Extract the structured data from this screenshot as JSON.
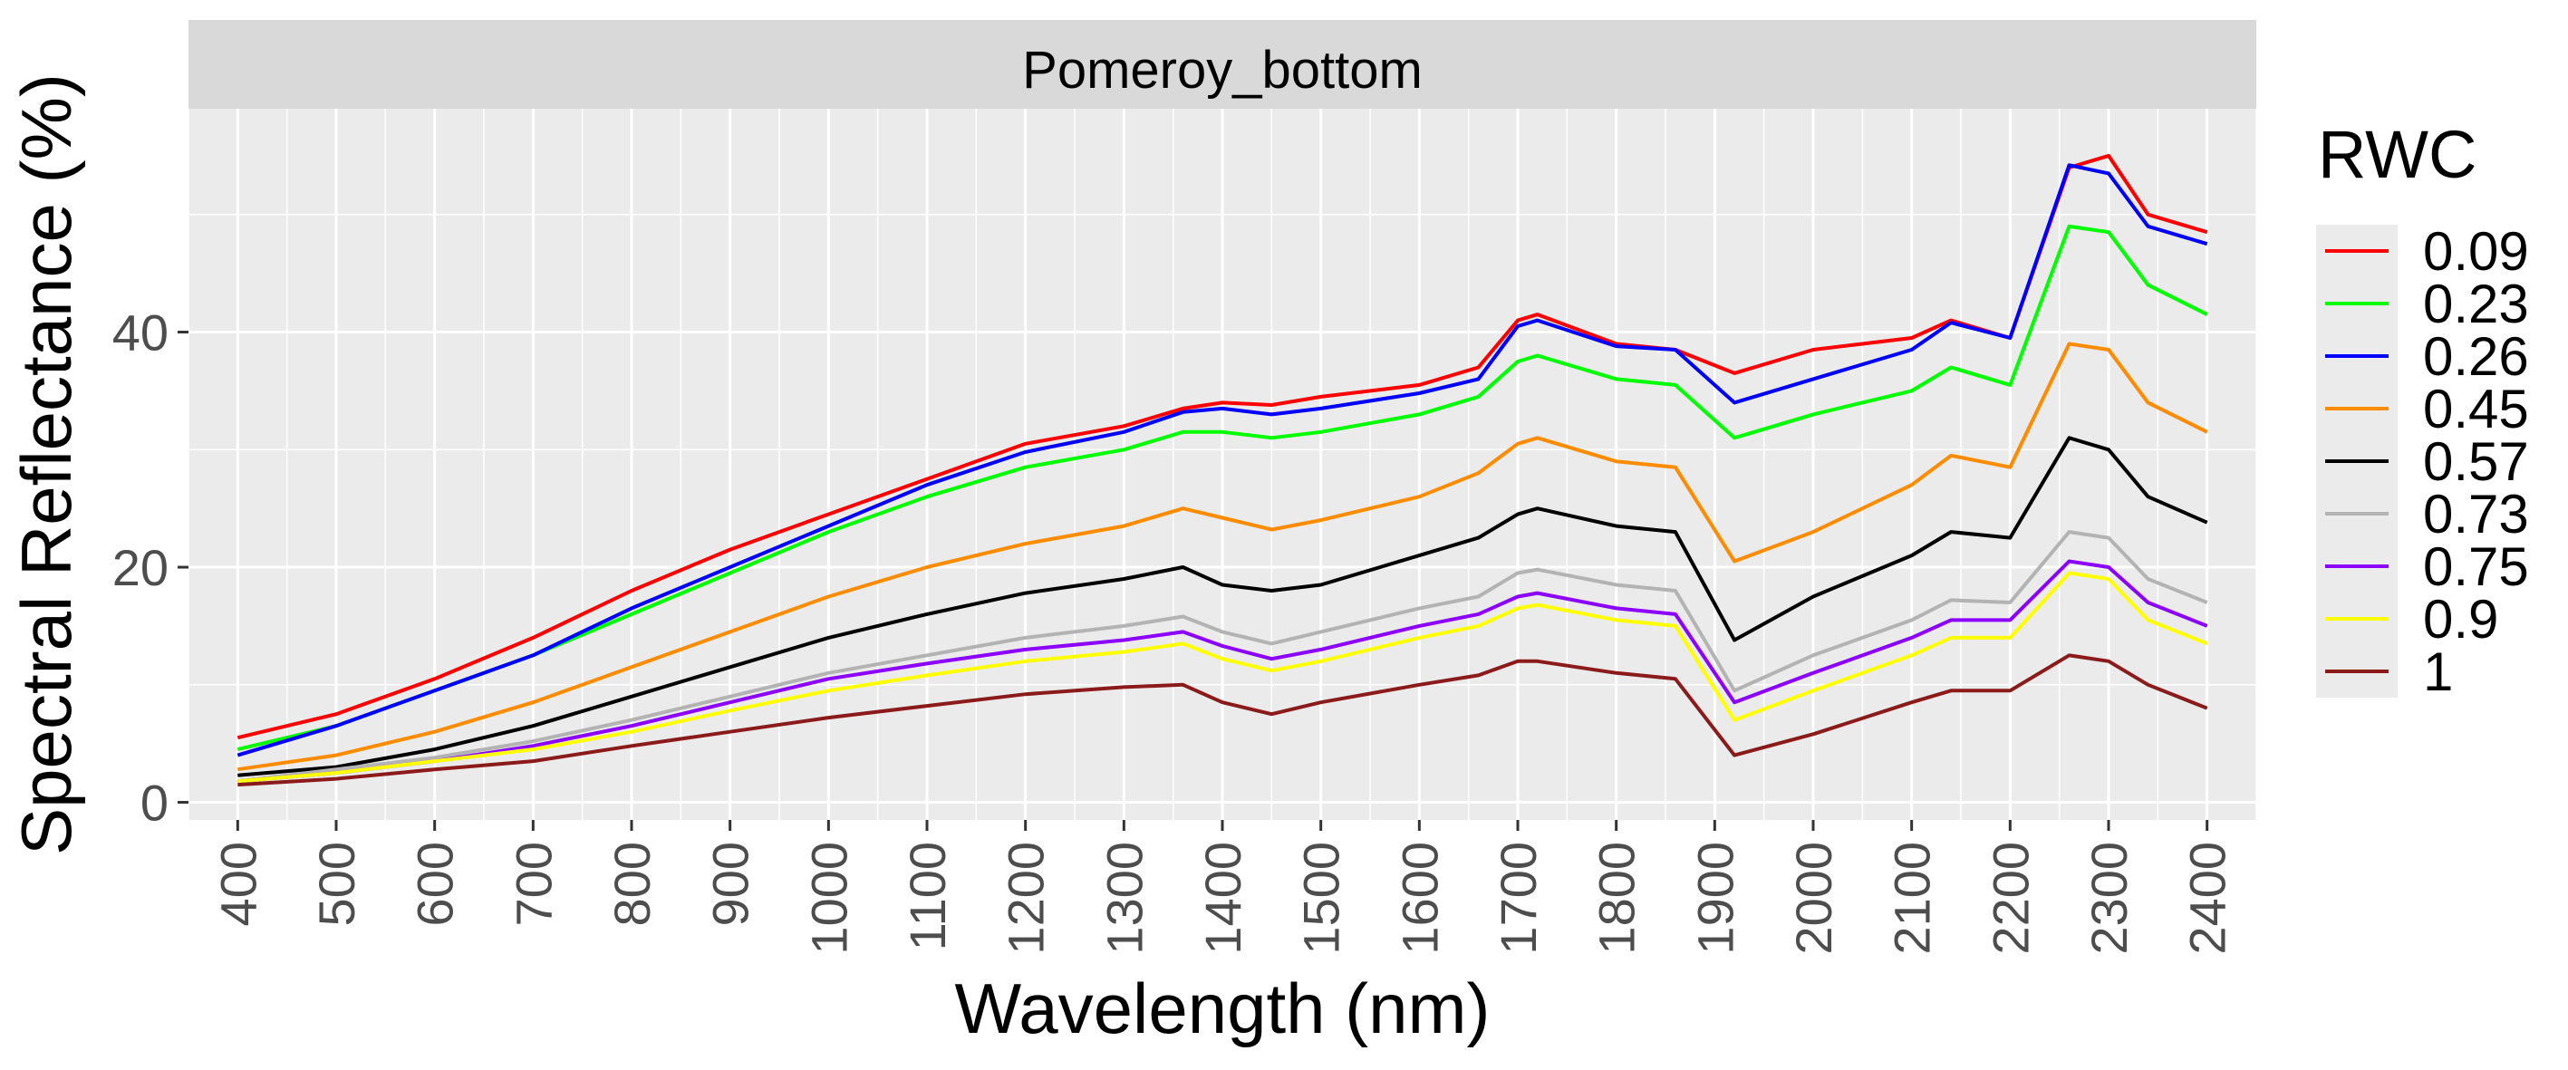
{
  "chart_data": {
    "type": "line",
    "facet_title": "Pomeroy_bottom",
    "xlabel": "Wavelength (nm)",
    "ylabel": "Spectral Reflectance (%)",
    "xlim": [
      350,
      2450
    ],
    "ylim": [
      -1.5,
      59
    ],
    "x_ticks": [
      "400",
      "500",
      "600",
      "700",
      "800",
      "900",
      "1000",
      "1100",
      "1200",
      "1300",
      "1400",
      "1500",
      "1600",
      "1700",
      "1800",
      "1900",
      "2000",
      "2100",
      "2200",
      "2300",
      "2400"
    ],
    "y_ticks": [
      "0",
      "20",
      "40"
    ],
    "grid": true,
    "legend_title": "RWC",
    "legend_position": "right",
    "x": [
      400,
      500,
      600,
      700,
      800,
      900,
      1000,
      1100,
      1200,
      1300,
      1360,
      1400,
      1450,
      1500,
      1600,
      1660,
      1700,
      1720,
      1800,
      1860,
      1920,
      2000,
      2100,
      2140,
      2200,
      2260,
      2300,
      2340,
      2400
    ],
    "series": [
      {
        "name": "0.09",
        "color": "#ff0000",
        "values": [
          5.5,
          7.5,
          10.5,
          14,
          18,
          21.5,
          24.5,
          27.5,
          30.5,
          32,
          33.5,
          34,
          33.8,
          34.5,
          35.5,
          37,
          41,
          41.5,
          39,
          38.5,
          36.5,
          38.5,
          39.5,
          41,
          39.5,
          54,
          55,
          50,
          48.5
        ]
      },
      {
        "name": "0.23",
        "color": "#00ff00",
        "values": [
          4.5,
          6.5,
          9.5,
          12.5,
          16,
          19.5,
          23,
          26,
          28.5,
          30,
          31.5,
          31.5,
          31,
          31.5,
          33,
          34.5,
          37.5,
          38,
          36,
          35.5,
          31,
          33,
          35,
          37,
          35.5,
          49,
          48.5,
          44,
          41.5
        ]
      },
      {
        "name": "0.26",
        "color": "#0000ff",
        "values": [
          4,
          6.5,
          9.5,
          12.5,
          16.5,
          20,
          23.5,
          27,
          29.8,
          31.5,
          33.2,
          33.5,
          33,
          33.5,
          34.8,
          36,
          40.5,
          41,
          38.8,
          38.5,
          34,
          36,
          38.5,
          40.8,
          39.5,
          54.2,
          53.5,
          49,
          47.5
        ]
      },
      {
        "name": "0.45",
        "color": "#ff8c00",
        "values": [
          2.8,
          4,
          6,
          8.5,
          11.5,
          14.5,
          17.5,
          20,
          22,
          23.5,
          25,
          24.2,
          23.2,
          24,
          26,
          28,
          30.5,
          31,
          29,
          28.5,
          20.5,
          23,
          27,
          29.5,
          28.5,
          39,
          38.5,
          34,
          31.5
        ]
      },
      {
        "name": "0.57",
        "color": "#000000",
        "values": [
          2.3,
          3,
          4.5,
          6.5,
          9,
          11.5,
          14,
          16,
          17.8,
          19,
          20,
          18.5,
          18,
          18.5,
          21,
          22.5,
          24.5,
          25,
          23.5,
          23,
          13.8,
          17.5,
          21,
          23,
          22.5,
          31,
          30,
          26,
          23.8
        ]
      },
      {
        "name": "0.73",
        "color": "#b3b3b3",
        "values": [
          1.8,
          2.8,
          3.8,
          5.2,
          7,
          9,
          11,
          12.5,
          14,
          15,
          15.8,
          14.5,
          13.5,
          14.5,
          16.5,
          17.5,
          19.5,
          19.8,
          18.5,
          18,
          9.5,
          12.5,
          15.5,
          17.2,
          17,
          23,
          22.5,
          19,
          17
        ]
      },
      {
        "name": "0.75",
        "color": "#8b00ff",
        "values": [
          1.8,
          2.5,
          3.5,
          4.8,
          6.5,
          8.5,
          10.5,
          11.8,
          13,
          13.8,
          14.5,
          13.3,
          12.2,
          13,
          15,
          16,
          17.5,
          17.8,
          16.5,
          16,
          8.5,
          11,
          14,
          15.5,
          15.5,
          20.5,
          20,
          17,
          15
        ]
      },
      {
        "name": "0.9",
        "color": "#ffff00",
        "values": [
          1.8,
          2.5,
          3.5,
          4.5,
          6,
          7.8,
          9.5,
          10.8,
          12,
          12.8,
          13.5,
          12.2,
          11.2,
          12,
          14,
          15,
          16.5,
          16.8,
          15.5,
          15,
          7,
          9.5,
          12.5,
          14,
          14,
          19.5,
          19,
          15.5,
          13.5
        ]
      },
      {
        "name": "1",
        "color": "#8b1a1a",
        "values": [
          1.5,
          2,
          2.8,
          3.5,
          4.8,
          6,
          7.2,
          8.2,
          9.2,
          9.8,
          10,
          8.5,
          7.5,
          8.5,
          10,
          10.8,
          12,
          12,
          11,
          10.5,
          4,
          5.8,
          8.5,
          9.5,
          9.5,
          12.5,
          12,
          10,
          8
        ]
      }
    ]
  }
}
